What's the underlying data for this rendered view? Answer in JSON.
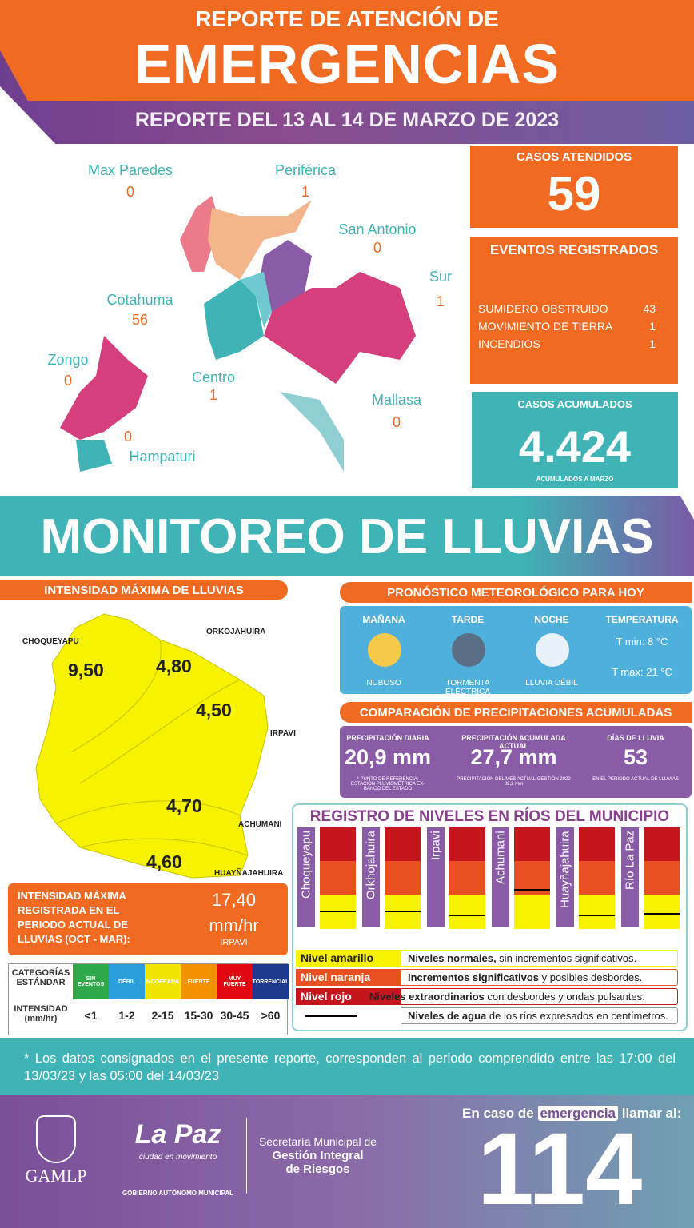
{
  "header": {
    "title_line1": "REPORTE DE ATENCIÓN DE",
    "title_line2": "EMERGENCIAS",
    "date": "REPORTE DEL 13 AL 14 DE MARZO DE 2023"
  },
  "districts": [
    {
      "name": "Max Paredes",
      "value": 0
    },
    {
      "name": "Periférica",
      "value": 1
    },
    {
      "name": "San Antonio",
      "value": 0
    },
    {
      "name": "Sur",
      "value": 1
    },
    {
      "name": "Cotahuma",
      "value": 56
    },
    {
      "name": "Zongo",
      "value": 0
    },
    {
      "name": "Centro",
      "value": 1
    },
    {
      "name": "Mallasa",
      "value": 0
    },
    {
      "name": "Hampaturi",
      "value": 0
    }
  ],
  "casos": {
    "label": "CASOS ATENDIDOS",
    "value": 59
  },
  "eventos": {
    "title": "EVENTOS REGISTRADOS",
    "items": [
      {
        "name": "SUMIDERO OBSTRUIDO",
        "count": 43
      },
      {
        "name": "MOVIMIENTO DE TIERRA",
        "count": 1
      },
      {
        "name": "INCENDIOS",
        "count": 1
      }
    ]
  },
  "acumulados": {
    "title": "CASOS ACUMULADOS",
    "value": "4.424",
    "note": "ACUMULADOS  A MARZO"
  },
  "monitoreo": {
    "title": "MONITOREO DE LLUVIAS"
  },
  "intensidad": {
    "title": "INTENSIDAD MÁXIMA  DE LLUVIAS",
    "stations": [
      {
        "name": "CHOQUEYAPU",
        "value": "9,50"
      },
      {
        "name": "ORKOJAHUIRA",
        "value": "4,80"
      },
      {
        "name": "IRPAVI",
        "value": "4,50"
      },
      {
        "name": "ACHUMANI",
        "value": "4,70"
      },
      {
        "name": "HUAYÑAJAHUIRA",
        "value": "4,60"
      }
    ],
    "max_label": "INTENSIDAD MÁXIMA REGISTRADA EN EL PERIODO ACTUAL DE LLUVIAS (OCT - MAR):",
    "max_value": "17,40",
    "max_unit": "mm/hr",
    "max_station": "IRPAVI"
  },
  "categorias": {
    "header": "CATEGORÍAS ESTÁNDAR",
    "row_label": "INTENSIDAD (mm/hr)",
    "columns": [
      {
        "name": "SIN EVENTOS",
        "color": "#2ea84a",
        "range": "<1"
      },
      {
        "name": "DÉBIL",
        "color": "#2b9fd9",
        "range": "1-2"
      },
      {
        "name": "MODERADA",
        "color": "#f2e600",
        "range": "2-15"
      },
      {
        "name": "FUERTE",
        "color": "#f39200",
        "range": "15-30"
      },
      {
        "name": "MUY FUERTE",
        "color": "#e30613",
        "range": "30-45"
      },
      {
        "name": "TORRENCIAL",
        "color": "#1d3a8f",
        "range": ">60"
      }
    ]
  },
  "pronostico": {
    "title": "PRONÓSTICO METEOROLÓGICO PARA HOY",
    "periods": [
      {
        "label": "MAÑANA",
        "desc": "NUBOSO"
      },
      {
        "label": "TARDE",
        "desc": "TORMENTA ELÉCTRICA"
      },
      {
        "label": "NOCHE",
        "desc": "LLUVIA DÉBIL"
      }
    ],
    "temp_label": "TEMPERATURA",
    "t_min": "T min:  8 °C",
    "t_max": "T max: 21 °C"
  },
  "comparacion": {
    "title": "COMPARACIÓN DE PRECIPITACIONES ACUMULADAS",
    "items": [
      {
        "label": "PRECIPITACIÓN DIARIA",
        "value": "20,9 mm",
        "note": "* PUNTO DE REFERENCIA: ESTACIÓN PLUVIOMÉTRICA EX-BANCO DEL ESTADO"
      },
      {
        "label": "PRECIPITACIÓN ACUMULADA ACTUAL",
        "value": "27,7 mm",
        "note": "PRECIPITACIÓN DEL MES ACTUAL GESTIÓN 2022 82,2 mm"
      },
      {
        "label": "DÍAS DE LLUVIA",
        "value": "53",
        "note": "EN EL PERIODO ACTUAL DE LLUVIAS"
      }
    ]
  },
  "rios": {
    "title": "REGISTRO DE NIVELES EN RÍOS DEL MUNICIPIO",
    "rivers": [
      "Choqueyapu",
      "Orkhojahuira",
      "Irpavi",
      "Achumani",
      "Huayñajahuira",
      "Río La Paz"
    ],
    "legend": [
      {
        "key": "Nivel amarillo",
        "bold": "Niveles normales,",
        "rest": " sin incrementos significativos."
      },
      {
        "key": "Nivel naranja",
        "bold": "Incrementos significativos",
        "rest": " y posibles desbordes."
      },
      {
        "key": "Nivel rojo",
        "bold": "Niveles extraordinarios",
        "rest": " con desbordes y ondas pulsantes."
      },
      {
        "key": "",
        "bold": "Niveles de agua",
        "rest": " de los ríos expresados en centímetros."
      }
    ]
  },
  "footer": {
    "note": "* Los datos consignados en el presente reporte, corresponden al periodo comprendido entre las 17:00 del 13/03/23 y las 05:00 del 14/03/23",
    "gamlp": "GAMLP",
    "lapaz": "La Paz",
    "lapaz_sub": "ciudad en movimiento",
    "gob": "GOBIERNO AUTÓNOMO MUNICIPAL",
    "sec1": "Secretaría Municipal de",
    "sec2": "Gestión Integral",
    "sec3": "de Riesgos",
    "call1": "En caso de",
    "call2": "emergencia",
    "call3": "llamar al:",
    "phone": "114"
  }
}
